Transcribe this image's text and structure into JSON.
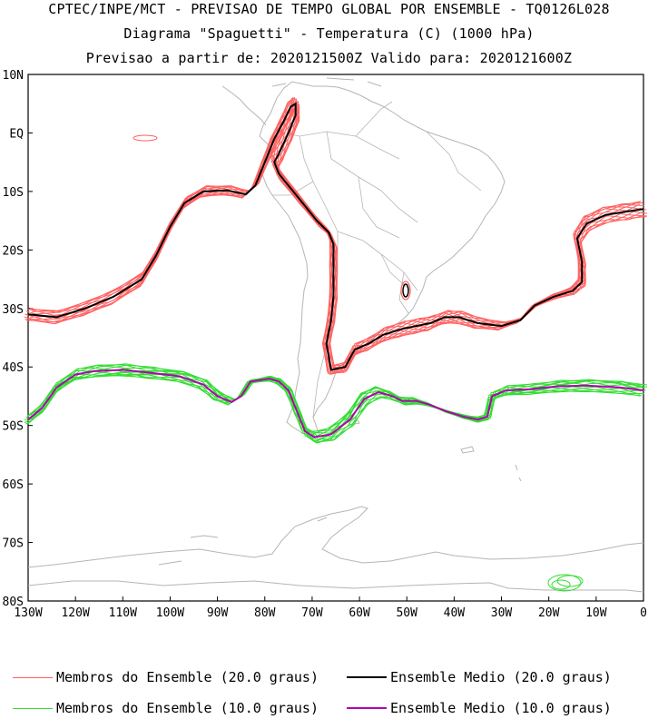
{
  "header": {
    "line1": "CPTEC/INPE/MCT - PREVISAO DE TEMPO GLOBAL POR ENSEMBLE - TQ0126L028",
    "line2": "Diagrama \"Spaguetti\" - Temperatura (C) (1000 hPa)",
    "line3": "Previsao a partir de: 2020121500Z  Valido para: 2020121600Z"
  },
  "map": {
    "lat_labels": [
      "10N",
      "EQ",
      "10S",
      "20S",
      "30S",
      "40S",
      "50S",
      "60S",
      "70S",
      "80S"
    ],
    "lon_labels": [
      "130W",
      "120W",
      "110W",
      "100W",
      "90W",
      "80W",
      "70W",
      "60W",
      "50W",
      "40W",
      "30W",
      "20W",
      "10W",
      "0"
    ],
    "lon_range": [
      -130,
      0
    ],
    "lat_range": [
      -80,
      10
    ]
  },
  "legend": {
    "members20": {
      "label": "Membros do Ensemble (20.0 graus)",
      "color": "#ff6060"
    },
    "mean20": {
      "label": "Ensemble Medio (20.0 graus)",
      "color": "#000000"
    },
    "members10": {
      "label": "Membros do Ensemble (10.0 graus)",
      "color": "#33dd33"
    },
    "mean10": {
      "label": "Ensemble Medio (10.0 graus)",
      "color": "#b000b0"
    }
  },
  "chart_data": {
    "type": "line",
    "series": [
      {
        "name": "Ensemble Medio (20.0 graus)",
        "color": "#000000",
        "points": [
          [
            -130,
            -31
          ],
          [
            -124,
            -31.5
          ],
          [
            -118,
            -30
          ],
          [
            -112,
            -28
          ],
          [
            -106,
            -25
          ],
          [
            -103,
            -21
          ],
          [
            -100,
            -16
          ],
          [
            -97,
            -12
          ],
          [
            -93,
            -10
          ],
          [
            -88,
            -9.8
          ],
          [
            -84,
            -10.5
          ],
          [
            -82,
            -9
          ],
          [
            -80,
            -5
          ],
          [
            -78,
            -1
          ],
          [
            -76,
            2
          ],
          [
            -74.5,
            4.5
          ],
          [
            -73.5,
            5
          ],
          [
            -73.5,
            3
          ],
          [
            -75,
            0
          ],
          [
            -77,
            -3.5
          ],
          [
            -78,
            -5
          ],
          [
            -77,
            -7
          ],
          [
            -73,
            -11
          ],
          [
            -69,
            -15
          ],
          [
            -66.5,
            -17
          ],
          [
            -65.5,
            -19
          ],
          [
            -65.5,
            -23
          ],
          [
            -65.5,
            -28
          ],
          [
            -66,
            -32
          ],
          [
            -67,
            -36
          ],
          [
            -66,
            -40.5
          ],
          [
            -63,
            -40
          ],
          [
            -61,
            -37
          ],
          [
            -58,
            -36
          ],
          [
            -55,
            -34.5
          ],
          [
            -51,
            -33.5
          ],
          [
            -48,
            -33
          ],
          [
            -45,
            -32.5
          ],
          [
            -42,
            -31.5
          ],
          [
            -39,
            -31.5
          ],
          [
            -35,
            -32.5
          ],
          [
            -30,
            -33
          ],
          [
            -26,
            -32
          ],
          [
            -23,
            -29.5
          ],
          [
            -19,
            -28
          ],
          [
            -15,
            -27
          ],
          [
            -13,
            -25.5
          ],
          [
            -13,
            -22
          ],
          [
            -14,
            -18
          ],
          [
            -12,
            -15.5
          ],
          [
            -8,
            -14
          ],
          [
            -4,
            -13.5
          ],
          [
            0,
            -13
          ]
        ]
      },
      {
        "name": "Ensemble Medio (10.0 graus)",
        "color": "#b000b0",
        "points": [
          [
            -130,
            -49
          ],
          [
            -127,
            -47
          ],
          [
            -124,
            -43.5
          ],
          [
            -120,
            -41.3
          ],
          [
            -116,
            -40.7
          ],
          [
            -110,
            -40.5
          ],
          [
            -104,
            -41
          ],
          [
            -98,
            -41.6
          ],
          [
            -93,
            -43
          ],
          [
            -90,
            -45
          ],
          [
            -87,
            -46
          ],
          [
            -85,
            -45
          ],
          [
            -83,
            -42.5
          ],
          [
            -79,
            -42
          ],
          [
            -77,
            -42.5
          ],
          [
            -75,
            -44
          ],
          [
            -73,
            -48
          ],
          [
            -71.5,
            -51
          ],
          [
            -69.5,
            -52
          ],
          [
            -66,
            -51.5
          ],
          [
            -62,
            -49
          ],
          [
            -59,
            -45.5
          ],
          [
            -56,
            -44.3
          ],
          [
            -53,
            -45
          ],
          [
            -51,
            -45.8
          ],
          [
            -48,
            -45.8
          ],
          [
            -45,
            -46.5
          ],
          [
            -42,
            -47.5
          ],
          [
            -38,
            -48.5
          ],
          [
            -35,
            -49
          ],
          [
            -33,
            -48.5
          ],
          [
            -32,
            -45
          ],
          [
            -29,
            -44
          ],
          [
            -24,
            -43.8
          ],
          [
            -18,
            -43.3
          ],
          [
            -12,
            -43.2
          ],
          [
            -5,
            -43.5
          ],
          [
            0,
            -44
          ]
        ]
      }
    ]
  }
}
